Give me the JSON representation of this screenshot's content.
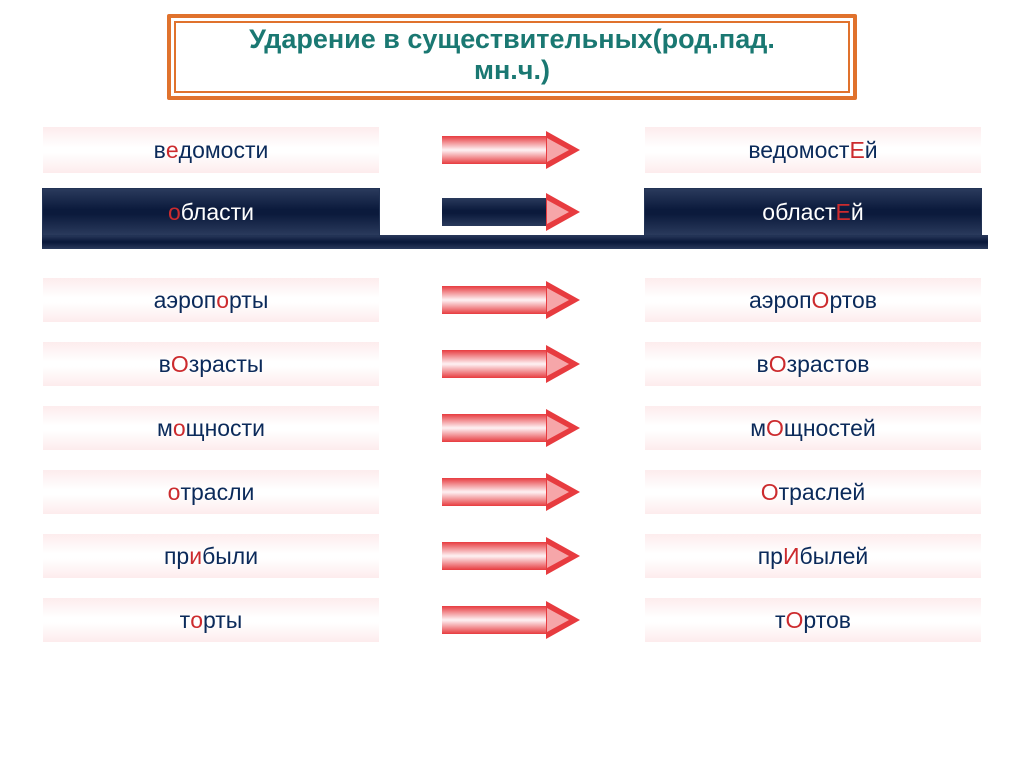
{
  "colors": {
    "title_text": "#1a7872",
    "title_border_outer": "#e0722d",
    "title_border_inner": "#e0722d",
    "stress": "#cc2b2e",
    "base_text": "#0b2a5a",
    "dark_text": "#ffffff",
    "pill_bg_light_stop": "#fdeced",
    "pill_bg_white": "#ffffff",
    "dark_bg_top": "#2a3a5c",
    "dark_bg_mid": "#0b1a3c",
    "arrow_red": "#e73b3f",
    "arrow_red_light": "#f6a6a9"
  },
  "title": {
    "line1": "Ударение в существительных(род.пад.",
    "line2": "мн.ч.)"
  },
  "group1": [
    {
      "style": "light",
      "arrow": "red",
      "left": [
        {
          "t": "в",
          "c": "base"
        },
        {
          "t": "е",
          "c": "stress"
        },
        {
          "t": "домости",
          "c": "base"
        }
      ],
      "right": [
        {
          "t": "ведомост",
          "c": "base"
        },
        {
          "t": "Е",
          "c": "stress"
        },
        {
          "t": "й",
          "c": "base"
        }
      ]
    },
    {
      "style": "dark",
      "arrow": "dark",
      "left": [
        {
          "t": "о",
          "c": "stress"
        },
        {
          "t": "бласти",
          "c": "dark"
        }
      ],
      "right": [
        {
          "t": "област",
          "c": "dark"
        },
        {
          "t": "Е",
          "c": "stress"
        },
        {
          "t": "й",
          "c": "dark"
        }
      ]
    }
  ],
  "group2": [
    {
      "left": [
        {
          "t": "аэроп",
          "c": "base"
        },
        {
          "t": "о",
          "c": "stress"
        },
        {
          "t": "рты",
          "c": "base"
        }
      ],
      "right": [
        {
          "t": "аэроп",
          "c": "base"
        },
        {
          "t": "О",
          "c": "stress"
        },
        {
          "t": "ртов",
          "c": "base"
        }
      ]
    },
    {
      "left": [
        {
          "t": "в",
          "c": "base"
        },
        {
          "t": "О",
          "c": "stress"
        },
        {
          "t": "зрасты",
          "c": "base"
        }
      ],
      "right": [
        {
          "t": "в",
          "c": "base"
        },
        {
          "t": "О",
          "c": "stress"
        },
        {
          "t": "зрастов",
          "c": "base"
        }
      ]
    },
    {
      "left": [
        {
          "t": "м",
          "c": "base"
        },
        {
          "t": "о",
          "c": "stress"
        },
        {
          "t": "щности",
          "c": "base"
        }
      ],
      "right": [
        {
          "t": "м",
          "c": "base"
        },
        {
          "t": "О",
          "c": "stress"
        },
        {
          "t": "щностей",
          "c": "base"
        }
      ]
    },
    {
      "left": [
        {
          "t": "о",
          "c": "stress"
        },
        {
          "t": "трасли",
          "c": "base"
        }
      ],
      "right": [
        {
          "t": "О",
          "c": "stress"
        },
        {
          "t": "траслей",
          "c": "base"
        }
      ]
    },
    {
      "left": [
        {
          "t": "пр",
          "c": "base"
        },
        {
          "t": "и",
          "c": "stress"
        },
        {
          "t": "были",
          "c": "base"
        }
      ],
      "right": [
        {
          "t": "пр",
          "c": "base"
        },
        {
          "t": "И",
          "c": "stress"
        },
        {
          "t": "былей",
          "c": "base"
        }
      ]
    },
    {
      "left": [
        {
          "t": "т",
          "c": "base"
        },
        {
          "t": "о",
          "c": "stress"
        },
        {
          "t": "рты",
          "c": "base"
        }
      ],
      "right": [
        {
          "t": "т",
          "c": "base"
        },
        {
          "t": "О",
          "c": "stress"
        },
        {
          "t": "ртов",
          "c": "base"
        }
      ]
    }
  ]
}
